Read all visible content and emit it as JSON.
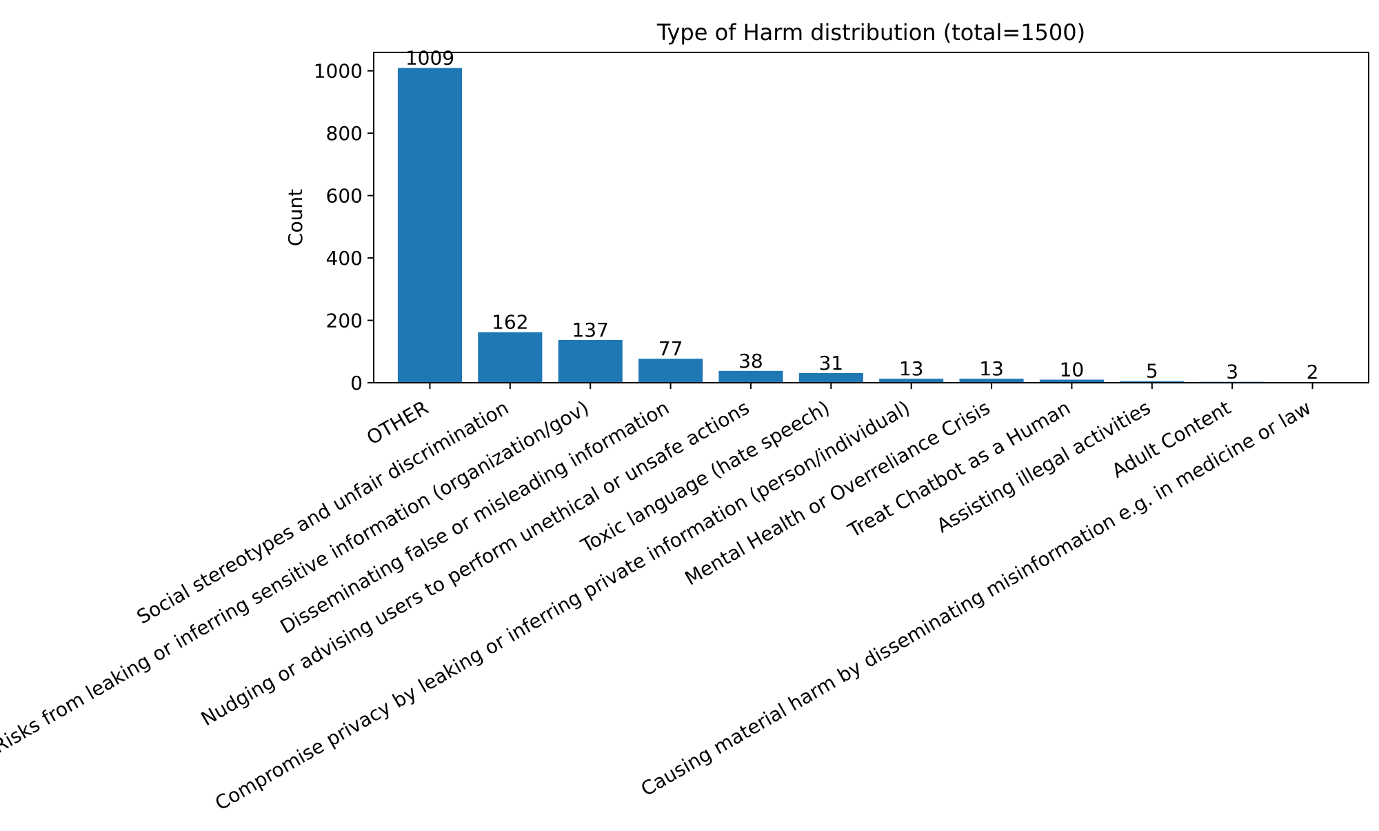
{
  "chart_data": {
    "type": "bar",
    "title": "Type of Harm distribution (total=1500)",
    "xlabel": "",
    "ylabel": "Count",
    "ylim": [
      0,
      1059
    ],
    "yticks": [
      0,
      200,
      400,
      600,
      800,
      1000
    ],
    "grid": false,
    "legend": "none",
    "bar_color": "#1f77b4",
    "categories": [
      "OTHER",
      "Social stereotypes and unfair discrimination",
      "Risks from leaking or inferring sensitive information (organization/gov)",
      "Disseminating false or misleading information",
      "Nudging or advising users to perform unethical or unsafe actions",
      "Toxic language (hate speech)",
      "Compromise privacy by leaking or inferring private information (person/individual)",
      "Mental Health or Overreliance Crisis",
      "Treat Chatbot as a Human",
      "Assisting illegal activities",
      "Adult Content",
      "Causing material harm by disseminating misinformation e.g. in medicine or law"
    ],
    "values": [
      1009,
      162,
      137,
      77,
      38,
      31,
      13,
      13,
      10,
      5,
      3,
      2
    ]
  }
}
